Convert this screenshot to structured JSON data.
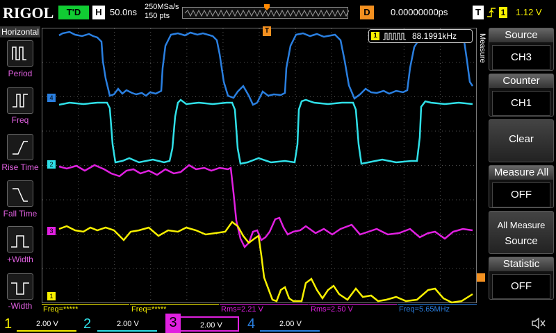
{
  "header": {
    "brand": "RIGOL",
    "status": "T'D",
    "horizontal_label": "H",
    "timebase": "50.0ns",
    "sample_rate": "250MSa/s",
    "memory_depth": "150 pts",
    "delay_label": "D",
    "delay": "0.00000000ps",
    "trigger_label": "T",
    "trigger_source": "1",
    "trigger_level": "1.12 V"
  },
  "left_menu": {
    "title": "Horizontal",
    "items": [
      "Period",
      "Freq",
      "Rise Time",
      "Fall Time",
      "+Width",
      "-Width"
    ]
  },
  "right_menu": {
    "title": "Measure",
    "items": [
      {
        "label": "Source",
        "value": "CH3"
      },
      {
        "label": "Counter",
        "value": "CH1"
      },
      {
        "label": "Clear"
      },
      {
        "label": "Measure All",
        "value": "OFF"
      },
      {
        "label": "All Measure",
        "value": "Source"
      },
      {
        "label": "Statistic",
        "value": "OFF"
      }
    ]
  },
  "counter": {
    "source": "1",
    "value": "88.1991kHz"
  },
  "markers": {
    "trigger": "T",
    "ch4": "4",
    "ch2": "2",
    "ch3": "3",
    "ch1": "1"
  },
  "measurements": [
    "Freq=*****",
    "Freq=*****",
    "Rms=2.21 V",
    "Rms=2.50 V",
    "Freq=5.65MHz"
  ],
  "channels": [
    {
      "number": "1",
      "scale": "2.00 V"
    },
    {
      "number": "2",
      "scale": "2.00 V"
    },
    {
      "number": "3",
      "scale": "2.00 V"
    },
    {
      "number": "4",
      "scale": "2.00 V"
    }
  ]
}
